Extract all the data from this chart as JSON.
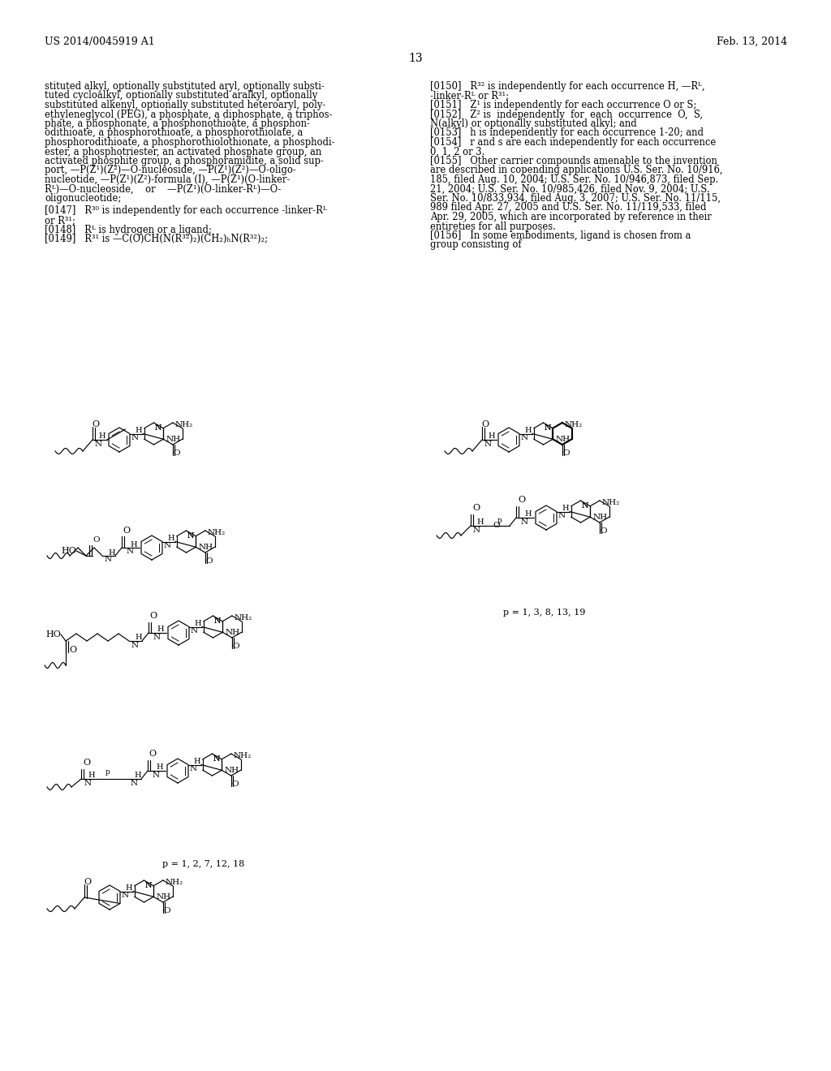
{
  "page_header_left": "US 2014/0045919 A1",
  "page_header_right": "Feb. 13, 2014",
  "page_number": "13",
  "background_color": "#ffffff",
  "text_color": "#000000",
  "left_column_lines": [
    "stituted alkyl, optionally substituted aryl, optionally substi-",
    "tuted cycloalkyl, optionally substituted aralkyl, optionally",
    "substituted alkenyl, optionally substituted heteroaryl, poly-",
    "ethyleneglycol (PEG), a phosphate, a diphosphate, a triphos-",
    "phate, a phosphonate, a phosphonothioate, a phosphon-",
    "odithioate, a phosphorothioate, a phosphorothiolate, a",
    "phosphorodithioate, a phosphorothiolothionate, a phosphodi-",
    "ester, a phosphotriester, an activated phosphate group, an",
    "activated phosphite group, a phosphoramidite, a solid sup-",
    "port, —P(Z¹)(Z²)—O-nucleoside, —P(Z¹)(Z²)—O-oligo-",
    "nucleotide, —P(Z¹)(Z²)-formula (I), —P(Z¹)(O-linker-",
    "Rᴸ)—O-nucleoside,    or    —P(Z¹)(O-linker-Rᴸ)—O-",
    "oligonucleotide;"
  ],
  "left_column_lines2": [
    "[0147]   R³⁰ is independently for each occurrence -linker-Rᴸ",
    "or R³¹;",
    "[0148]   Rᴸ is hydrogen or a ligand;",
    "[0149]   R³¹ is —C(O)CH(N(R³²)₂)(CH₂)ₕN(R³²)₂;"
  ],
  "right_column_lines": [
    "[0150]   R³² is independently for each occurrence H, —Rᴸ,",
    "-linker-Rᴸ or R³¹;",
    "[0151]   Z¹ is independently for each occurrence O or S;",
    "[0152]   Z² is  independently  for  each  occurrence  O,  S,",
    "N(alkyl) or optionally substituted alkyl; and",
    "[0153]   h is independently for each occurrence 1-20; and",
    "[0154]   r and s are each independently for each occurrence",
    "0, 1, 2 or 3.",
    "[0155]   Other carrier compounds amenable to the invention",
    "are described in copending applications U.S. Ser. No. 10/916,",
    "185, filed Aug. 10, 2004; U.S. Ser. No. 10/946,873, filed Sep.",
    "21, 2004; U.S. Ser. No. 10/985,426, filed Nov. 9, 2004; U.S.",
    "Ser. No. 10/833,934, filed Aug. 3, 2007; U.S. Ser. No. 11/115,",
    "989 filed Apr. 27, 2005 and U.S. Ser. No. 11/119,533, filed",
    "Apr. 29, 2005, which are incorporated by reference in their",
    "entireties for all purposes.",
    "[0156]   In some embodiments, ligand is chosen from a",
    "group consisting of"
  ],
  "caption_p1": "p = 1, 3, 8, 13, 19",
  "caption_p2": "p = 1, 2, 7, 12, 18",
  "body_fontsize": 8.3,
  "header_fontsize": 9.0
}
